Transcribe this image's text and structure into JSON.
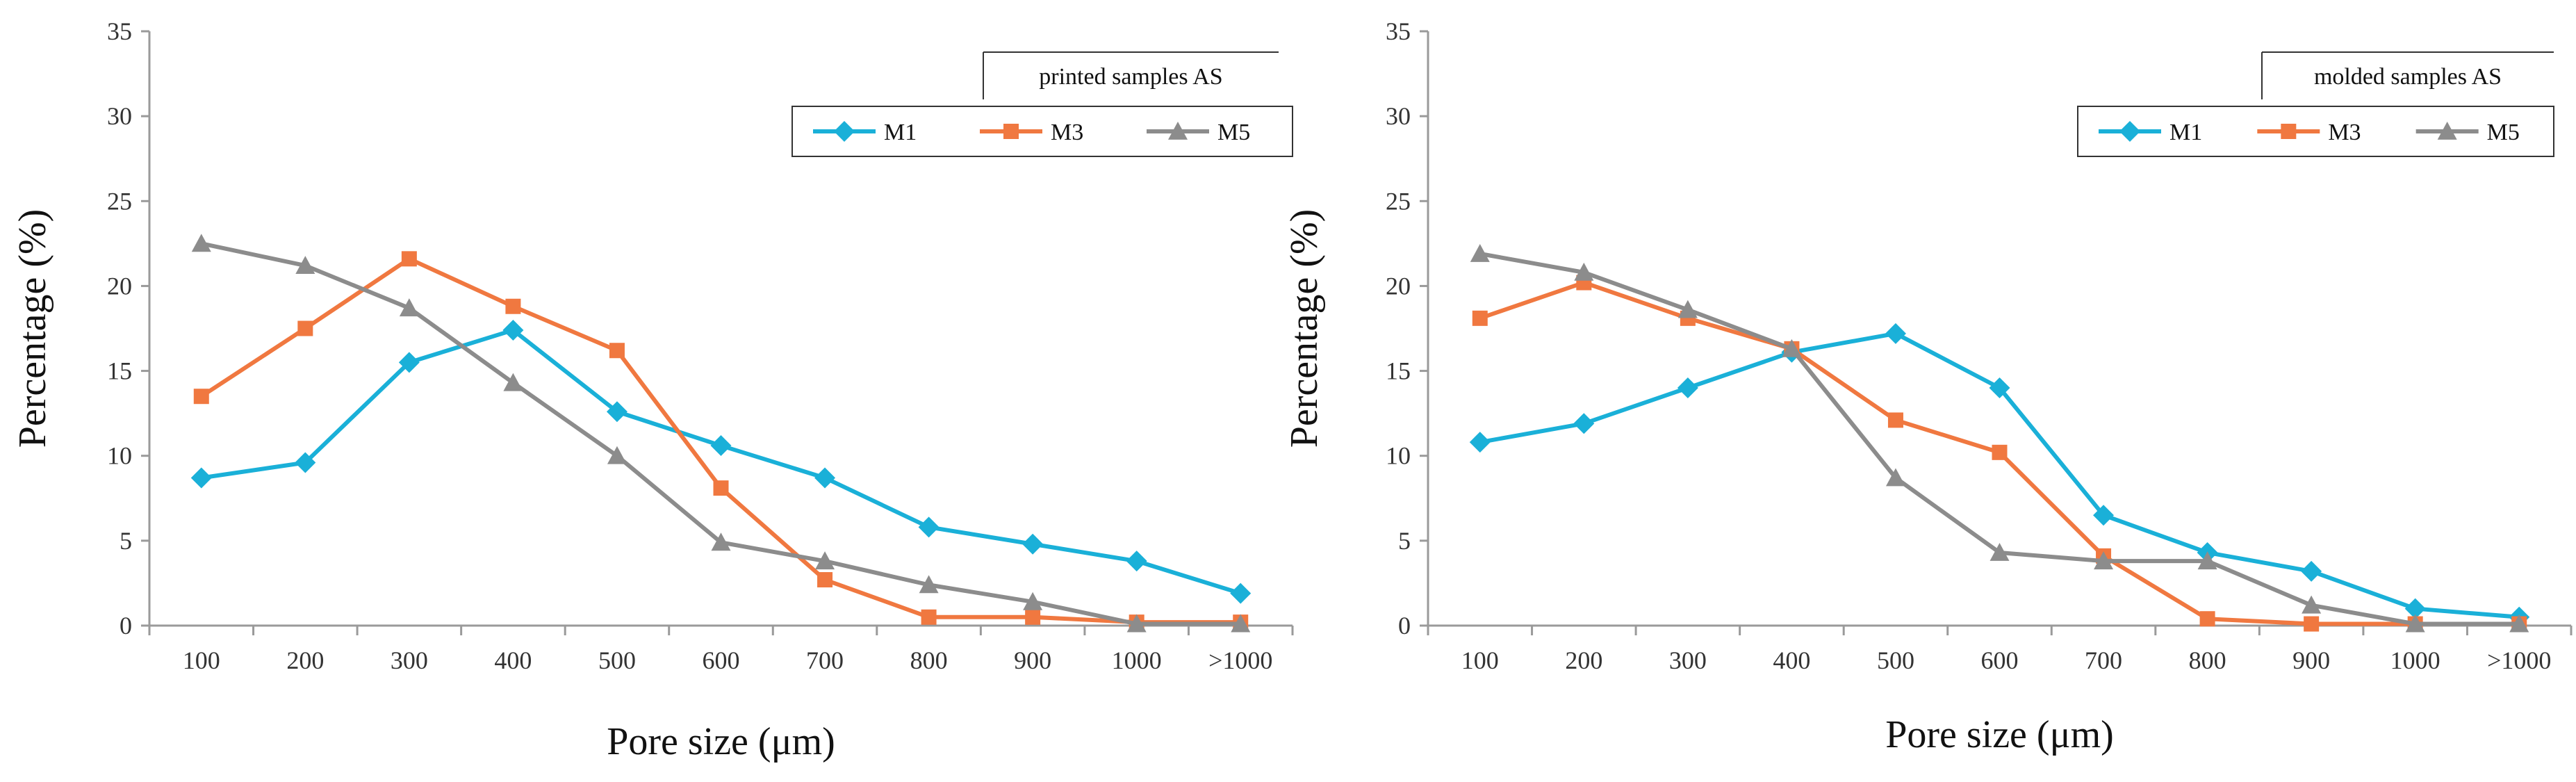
{
  "chart_data": [
    {
      "type": "line",
      "title": "",
      "legend_title": "printed samples AS",
      "legend_placement": "top-right",
      "xlabel": "Pore size (μm)",
      "ylabel": "Percentage (%)",
      "categories": [
        "100",
        "200",
        "300",
        "400",
        "500",
        "600",
        "700",
        "800",
        "900",
        "1000",
        ">1000"
      ],
      "ylim": [
        0,
        35
      ],
      "yticks": [
        "0",
        "5",
        "10",
        "15",
        "20",
        "25",
        "30",
        "35"
      ],
      "grid": false,
      "series": [
        {
          "name": "M1",
          "color": "#1ab0d8",
          "marker": "diamond",
          "values": [
            8.7,
            9.6,
            15.5,
            17.4,
            12.6,
            10.6,
            8.7,
            5.8,
            4.8,
            3.8,
            1.9
          ]
        },
        {
          "name": "M3",
          "color": "#f07840",
          "marker": "square",
          "values": [
            13.5,
            17.5,
            21.6,
            18.8,
            16.2,
            8.1,
            2.7,
            0.5,
            0.5,
            0.2,
            0.2
          ]
        },
        {
          "name": "M5",
          "color": "#8c8c8c",
          "marker": "triangle",
          "values": [
            22.5,
            21.2,
            18.7,
            14.3,
            10.0,
            4.9,
            3.8,
            2.4,
            1.4,
            0.1,
            0.1
          ]
        }
      ]
    },
    {
      "type": "line",
      "title": "",
      "legend_title": "molded samples AS",
      "legend_placement": "top-right",
      "xlabel": "Pore size (μm)",
      "ylabel": "Percentage (%)",
      "categories": [
        "100",
        "200",
        "300",
        "400",
        "500",
        "600",
        "700",
        "800",
        "900",
        "1000",
        ">1000"
      ],
      "ylim": [
        0,
        35
      ],
      "yticks": [
        "0",
        "5",
        "10",
        "15",
        "20",
        "25",
        "30",
        "35"
      ],
      "grid": false,
      "series": [
        {
          "name": "M1",
          "color": "#1ab0d8",
          "marker": "diamond",
          "values": [
            10.8,
            11.9,
            14.0,
            16.1,
            17.2,
            14.0,
            6.5,
            4.3,
            3.2,
            1.0,
            0.5
          ]
        },
        {
          "name": "M3",
          "color": "#f07840",
          "marker": "square",
          "values": [
            18.1,
            20.2,
            18.1,
            16.3,
            12.1,
            10.2,
            4.1,
            0.4,
            0.1,
            0.1,
            0.1
          ]
        },
        {
          "name": "M5",
          "color": "#8c8c8c",
          "marker": "triangle",
          "values": [
            21.9,
            20.8,
            18.6,
            16.3,
            8.7,
            4.3,
            3.8,
            3.8,
            1.2,
            0.1,
            0.1
          ]
        }
      ]
    }
  ]
}
